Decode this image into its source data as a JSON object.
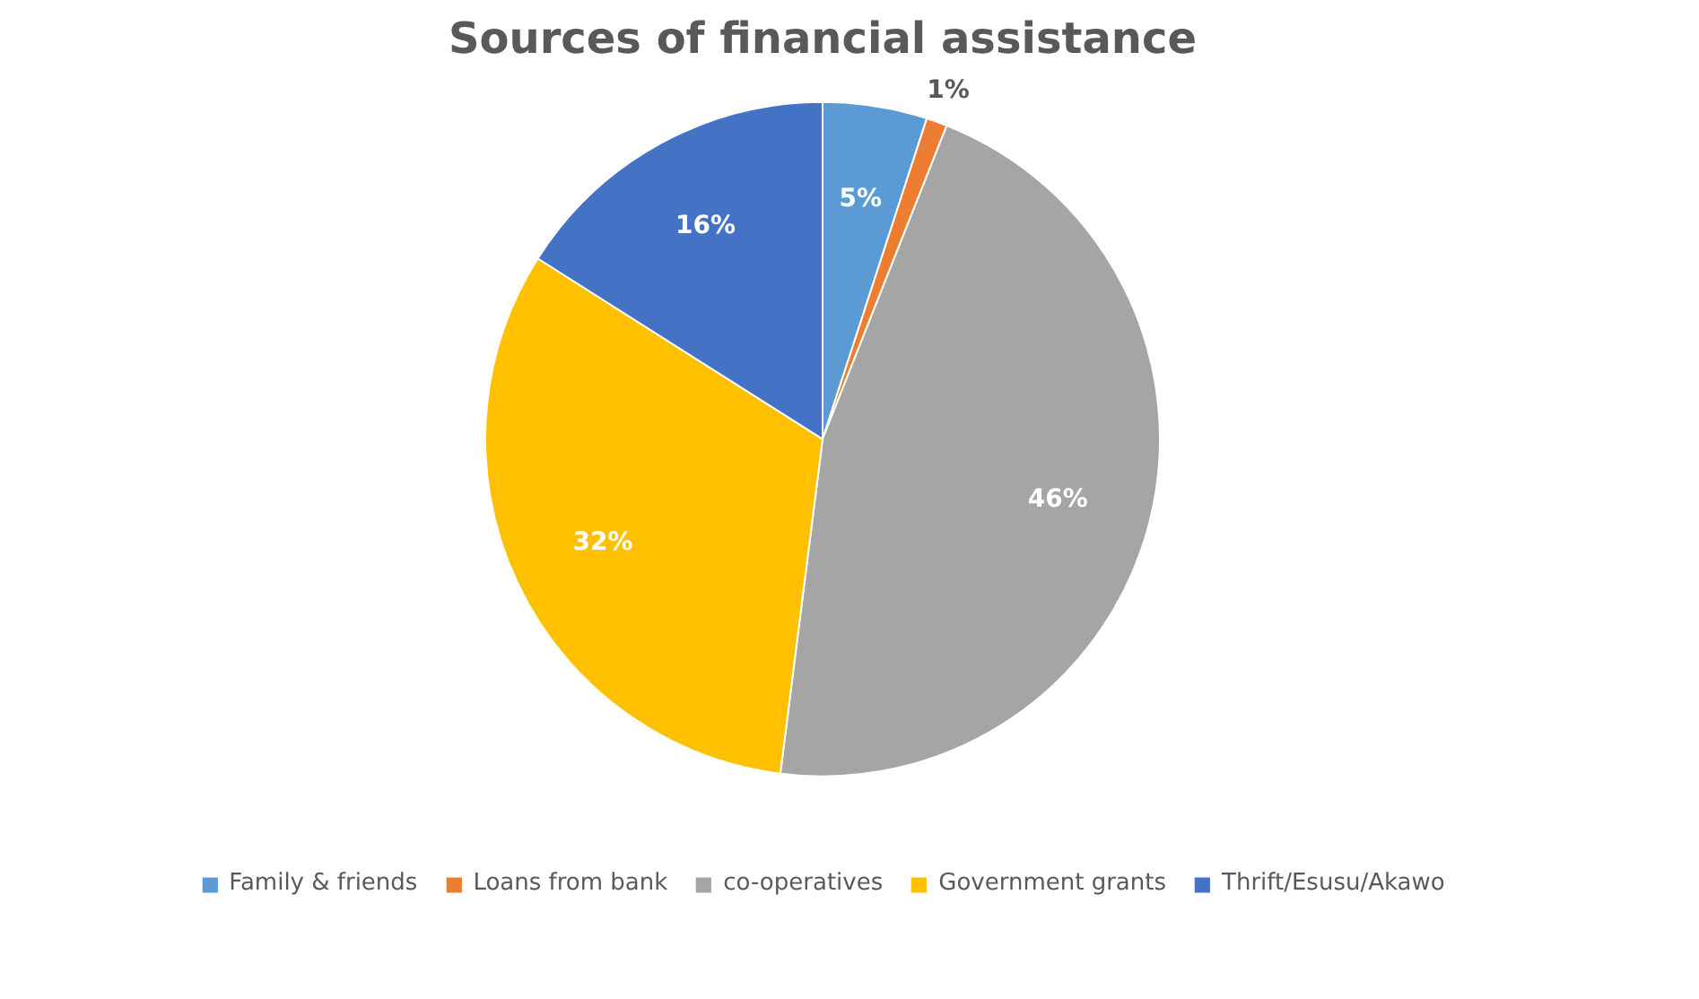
{
  "chart_data": {
    "type": "pie",
    "title": "Sources of financial assistance",
    "categories": [
      "Family & friends",
      "Loans from bank",
      "co-operatives",
      "Government grants",
      "Thrift/Esusu/Akawo"
    ],
    "values": [
      5,
      1,
      46,
      32,
      16
    ],
    "colors": [
      "#5b9bd5",
      "#ed7d31",
      "#a5a5a5",
      "#ffc000",
      "#4472c4"
    ],
    "value_labels": [
      "5%",
      "1%",
      "46%",
      "32%",
      "16%"
    ],
    "legend": "bottom"
  }
}
